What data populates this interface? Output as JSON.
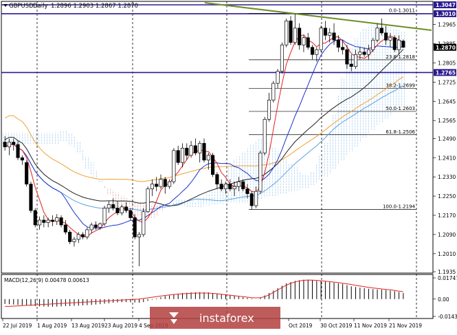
{
  "chart_data": {
    "type": "candlestick",
    "header": {
      "symbol": "GBPUSD",
      "timeframe": "Daily",
      "ohlc_text": "1.2896 1.2903 1.2867 1.2870"
    },
    "price_axis": {
      "ylim": [
        1.1935,
        1.3047
      ],
      "ticks": [
        "1.2965",
        "1.2885",
        "1.2805",
        "1.2725",
        "1.2645",
        "1.2565",
        "1.2490",
        "1.2410",
        "1.2330",
        "1.2250",
        "1.2170",
        "1.2090",
        "1.2010",
        "1.1935"
      ],
      "tick_values": [
        1.2965,
        1.2885,
        1.2805,
        1.2725,
        1.2645,
        1.2565,
        1.249,
        1.241,
        1.233,
        1.225,
        1.217,
        1.209,
        1.201,
        1.1935
      ],
      "highlight_labels": [
        {
          "text": "1.3047",
          "value": 1.3047,
          "color": "#2b1a8f"
        },
        {
          "text": "1.3010",
          "value": 1.301,
          "color": "#2b1a8f"
        },
        {
          "text": "1.2870",
          "value": 1.287,
          "color": "#000000"
        },
        {
          "text": "1.2765",
          "value": 1.2765,
          "color": "#2b1a8f"
        }
      ]
    },
    "horizontal_levels": [
      {
        "value": 1.3047,
        "color": "#2b1a8f"
      },
      {
        "value": 1.301,
        "color": "#2b1a8f"
      },
      {
        "value": 1.2765,
        "color": "#2b1a8f"
      }
    ],
    "fibonacci": [
      {
        "label": "0.0-1.3011",
        "value": 1.3011
      },
      {
        "label": "23.6-1.2818",
        "value": 1.2818
      },
      {
        "label": "38.2-1.2699",
        "value": 1.2699
      },
      {
        "label": "50.0-1.2603",
        "value": 1.2603
      },
      {
        "label": "61.8-1.2506",
        "value": 1.2506
      },
      {
        "label": "100.0-1.2194",
        "value": 1.2194
      }
    ],
    "x_labels": [
      "22 Jul 2019",
      "1 Aug 2019",
      "13 Aug 2019",
      "23 Aug 2019",
      "4 Sep 2019",
      "",
      "",
      "Oct 2019",
      "30 Oct 2019",
      "11 Nov 2019",
      "21 Nov 2019"
    ],
    "candles": [
      {
        "o": 1.2475,
        "h": 1.25,
        "l": 1.244,
        "c": 1.2455
      },
      {
        "o": 1.2455,
        "h": 1.249,
        "l": 1.242,
        "c": 1.2475
      },
      {
        "o": 1.2475,
        "h": 1.249,
        "l": 1.244,
        "c": 1.2465
      },
      {
        "o": 1.2465,
        "h": 1.248,
        "l": 1.24,
        "c": 1.241
      },
      {
        "o": 1.241,
        "h": 1.242,
        "l": 1.238,
        "c": 1.24
      },
      {
        "o": 1.239,
        "h": 1.24,
        "l": 1.229,
        "c": 1.23
      },
      {
        "o": 1.23,
        "h": 1.231,
        "l": 1.218,
        "c": 1.219
      },
      {
        "o": 1.219,
        "h": 1.22,
        "l": 1.212,
        "c": 1.213
      },
      {
        "o": 1.213,
        "h": 1.2165,
        "l": 1.211,
        "c": 1.215
      },
      {
        "o": 1.215,
        "h": 1.217,
        "l": 1.212,
        "c": 1.214
      },
      {
        "o": 1.214,
        "h": 1.216,
        "l": 1.212,
        "c": 1.215
      },
      {
        "o": 1.215,
        "h": 1.217,
        "l": 1.2125,
        "c": 1.2145
      },
      {
        "o": 1.2145,
        "h": 1.2175,
        "l": 1.213,
        "c": 1.216
      },
      {
        "o": 1.216,
        "h": 1.217,
        "l": 1.212,
        "c": 1.213
      },
      {
        "o": 1.213,
        "h": 1.215,
        "l": 1.209,
        "c": 1.21
      },
      {
        "o": 1.21,
        "h": 1.211,
        "l": 1.205,
        "c": 1.206
      },
      {
        "o": 1.206,
        "h": 1.208,
        "l": 1.204,
        "c": 1.207
      },
      {
        "o": 1.207,
        "h": 1.21,
        "l": 1.2055,
        "c": 1.209
      },
      {
        "o": 1.209,
        "h": 1.21,
        "l": 1.207,
        "c": 1.208
      },
      {
        "o": 1.208,
        "h": 1.212,
        "l": 1.207,
        "c": 1.211
      },
      {
        "o": 1.211,
        "h": 1.214,
        "l": 1.2095,
        "c": 1.213
      },
      {
        "o": 1.213,
        "h": 1.2145,
        "l": 1.211,
        "c": 1.212
      },
      {
        "o": 1.212,
        "h": 1.214,
        "l": 1.211,
        "c": 1.2135
      },
      {
        "o": 1.2135,
        "h": 1.221,
        "l": 1.2125,
        "c": 1.22
      },
      {
        "o": 1.22,
        "h": 1.223,
        "l": 1.218,
        "c": 1.2215
      },
      {
        "o": 1.2215,
        "h": 1.224,
        "l": 1.219,
        "c": 1.22
      },
      {
        "o": 1.22,
        "h": 1.223,
        "l": 1.217,
        "c": 1.218
      },
      {
        "o": 1.218,
        "h": 1.2215,
        "l": 1.217,
        "c": 1.2205
      },
      {
        "o": 1.2205,
        "h": 1.2225,
        "l": 1.218,
        "c": 1.219
      },
      {
        "o": 1.219,
        "h": 1.22,
        "l": 1.215,
        "c": 1.216
      },
      {
        "o": 1.216,
        "h": 1.2175,
        "l": 1.207,
        "c": 1.208
      },
      {
        "o": 1.208,
        "h": 1.21,
        "l": 1.1958,
        "c": 1.209
      },
      {
        "o": 1.209,
        "h": 1.22,
        "l": 1.208,
        "c": 1.2185
      },
      {
        "o": 1.2185,
        "h": 1.229,
        "l": 1.218,
        "c": 1.228
      },
      {
        "o": 1.228,
        "h": 1.232,
        "l": 1.225,
        "c": 1.23
      },
      {
        "o": 1.23,
        "h": 1.233,
        "l": 1.227,
        "c": 1.229
      },
      {
        "o": 1.229,
        "h": 1.234,
        "l": 1.228,
        "c": 1.232
      },
      {
        "o": 1.232,
        "h": 1.233,
        "l": 1.226,
        "c": 1.229
      },
      {
        "o": 1.229,
        "h": 1.232,
        "l": 1.228,
        "c": 1.231
      },
      {
        "o": 1.231,
        "h": 1.245,
        "l": 1.23,
        "c": 1.244
      },
      {
        "o": 1.244,
        "h": 1.246,
        "l": 1.238,
        "c": 1.239
      },
      {
        "o": 1.239,
        "h": 1.247,
        "l": 1.237,
        "c": 1.245
      },
      {
        "o": 1.245,
        "h": 1.247,
        "l": 1.24,
        "c": 1.242
      },
      {
        "o": 1.242,
        "h": 1.248,
        "l": 1.241,
        "c": 1.246
      },
      {
        "o": 1.246,
        "h": 1.249,
        "l": 1.242,
        "c": 1.243
      },
      {
        "o": 1.243,
        "h": 1.248,
        "l": 1.239,
        "c": 1.247
      },
      {
        "o": 1.247,
        "h": 1.249,
        "l": 1.239,
        "c": 1.24
      },
      {
        "o": 1.24,
        "h": 1.243,
        "l": 1.236,
        "c": 1.242
      },
      {
        "o": 1.242,
        "h": 1.243,
        "l": 1.233,
        "c": 1.234
      },
      {
        "o": 1.234,
        "h": 1.235,
        "l": 1.228,
        "c": 1.23
      },
      {
        "o": 1.23,
        "h": 1.232,
        "l": 1.227,
        "c": 1.228
      },
      {
        "o": 1.228,
        "h": 1.231,
        "l": 1.226,
        "c": 1.23
      },
      {
        "o": 1.23,
        "h": 1.232,
        "l": 1.227,
        "c": 1.228
      },
      {
        "o": 1.228,
        "h": 1.231,
        "l": 1.225,
        "c": 1.229
      },
      {
        "o": 1.229,
        "h": 1.233,
        "l": 1.227,
        "c": 1.231
      },
      {
        "o": 1.231,
        "h": 1.232,
        "l": 1.227,
        "c": 1.228
      },
      {
        "o": 1.228,
        "h": 1.23,
        "l": 1.224,
        "c": 1.226
      },
      {
        "o": 1.226,
        "h": 1.227,
        "l": 1.2195,
        "c": 1.221
      },
      {
        "o": 1.221,
        "h": 1.229,
        "l": 1.22,
        "c": 1.227
      },
      {
        "o": 1.227,
        "h": 1.244,
        "l": 1.226,
        "c": 1.243
      },
      {
        "o": 1.243,
        "h": 1.258,
        "l": 1.242,
        "c": 1.257
      },
      {
        "o": 1.257,
        "h": 1.268,
        "l": 1.256,
        "c": 1.265
      },
      {
        "o": 1.265,
        "h": 1.273,
        "l": 1.264,
        "c": 1.272
      },
      {
        "o": 1.272,
        "h": 1.278,
        "l": 1.27,
        "c": 1.277
      },
      {
        "o": 1.277,
        "h": 1.289,
        "l": 1.276,
        "c": 1.288
      },
      {
        "o": 1.288,
        "h": 1.299,
        "l": 1.287,
        "c": 1.298
      },
      {
        "o": 1.298,
        "h": 1.3,
        "l": 1.288,
        "c": 1.289
      },
      {
        "o": 1.289,
        "h": 1.301,
        "l": 1.288,
        "c": 1.295
      },
      {
        "o": 1.295,
        "h": 1.297,
        "l": 1.286,
        "c": 1.288
      },
      {
        "o": 1.288,
        "h": 1.292,
        "l": 1.285,
        "c": 1.291
      },
      {
        "o": 1.291,
        "h": 1.293,
        "l": 1.286,
        "c": 1.287
      },
      {
        "o": 1.287,
        "h": 1.288,
        "l": 1.282,
        "c": 1.284
      },
      {
        "o": 1.284,
        "h": 1.287,
        "l": 1.281,
        "c": 1.286
      },
      {
        "o": 1.286,
        "h": 1.296,
        "l": 1.285,
        "c": 1.295
      },
      {
        "o": 1.295,
        "h": 1.298,
        "l": 1.29,
        "c": 1.292
      },
      {
        "o": 1.292,
        "h": 1.295,
        "l": 1.289,
        "c": 1.293
      },
      {
        "o": 1.293,
        "h": 1.297,
        "l": 1.288,
        "c": 1.29
      },
      {
        "o": 1.29,
        "h": 1.292,
        "l": 1.285,
        "c": 1.287
      },
      {
        "o": 1.287,
        "h": 1.29,
        "l": 1.284,
        "c": 1.286
      },
      {
        "o": 1.286,
        "h": 1.288,
        "l": 1.278,
        "c": 1.28
      },
      {
        "o": 1.28,
        "h": 1.284,
        "l": 1.277,
        "c": 1.279
      },
      {
        "o": 1.279,
        "h": 1.286,
        "l": 1.278,
        "c": 1.284
      },
      {
        "o": 1.284,
        "h": 1.287,
        "l": 1.282,
        "c": 1.285
      },
      {
        "o": 1.285,
        "h": 1.287,
        "l": 1.283,
        "c": 1.284
      },
      {
        "o": 1.284,
        "h": 1.288,
        "l": 1.282,
        "c": 1.286
      },
      {
        "o": 1.286,
        "h": 1.291,
        "l": 1.285,
        "c": 1.29
      },
      {
        "o": 1.29,
        "h": 1.297,
        "l": 1.289,
        "c": 1.295
      },
      {
        "o": 1.295,
        "h": 1.299,
        "l": 1.292,
        "c": 1.293
      },
      {
        "o": 1.293,
        "h": 1.296,
        "l": 1.288,
        "c": 1.29
      },
      {
        "o": 1.29,
        "h": 1.293,
        "l": 1.287,
        "c": 1.291
      },
      {
        "o": 1.291,
        "h": 1.292,
        "l": 1.285,
        "c": 1.286
      },
      {
        "o": 1.286,
        "h": 1.292,
        "l": 1.284,
        "c": 1.29
      },
      {
        "o": 1.2896,
        "h": 1.2903,
        "l": 1.2867,
        "c": 1.287
      }
    ],
    "macd": {
      "label": "MACD(12,26,9) 0.00478 0.00613",
      "ylim": [
        -0.01431,
        0.01747
      ],
      "ticks": [
        "0.01747",
        "0.00",
        "-0.01431"
      ],
      "tick_values": [
        0.01747,
        0.0,
        -0.01431
      ],
      "histogram": [
        -0.004,
        -0.0042,
        -0.0045,
        -0.0048,
        -0.005,
        -0.0052,
        -0.0055,
        -0.0058,
        -0.006,
        -0.0062,
        -0.0063,
        -0.0063,
        -0.0062,
        -0.006,
        -0.0058,
        -0.0058,
        -0.0056,
        -0.0054,
        -0.0052,
        -0.005,
        -0.0048,
        -0.0045,
        -0.0042,
        -0.0038,
        -0.0034,
        -0.003,
        -0.0028,
        -0.0026,
        -0.0025,
        -0.0026,
        -0.0028,
        -0.003,
        -0.0025,
        -0.0015,
        -0.0005,
        0.0005,
        0.0015,
        0.0025,
        0.003,
        0.004,
        0.0045,
        0.005,
        0.0052,
        0.0055,
        0.0056,
        0.0057,
        0.0056,
        0.0055,
        0.005,
        0.0045,
        0.004,
        0.0035,
        0.003,
        0.0025,
        0.002,
        0.0015,
        0.001,
        0.0005,
        0.0,
        0.001,
        0.003,
        0.005,
        0.007,
        0.009,
        0.011,
        0.013,
        0.014,
        0.015,
        0.0155,
        0.016,
        0.016,
        0.0155,
        0.015,
        0.015,
        0.0145,
        0.014,
        0.0135,
        0.013,
        0.0125,
        0.0115,
        0.0105,
        0.01,
        0.0095,
        0.009,
        0.0085,
        0.0082,
        0.008,
        0.0078,
        0.0075,
        0.007,
        0.0065,
        0.0058,
        0.005
      ],
      "signal": [
        -0.006,
        -0.006,
        -0.0058,
        -0.0056,
        -0.0054,
        -0.0052,
        -0.005,
        -0.0048,
        -0.0046,
        -0.0044,
        -0.0042,
        -0.004,
        -0.0038,
        -0.0036,
        -0.0034,
        -0.0032,
        -0.003,
        -0.0028,
        -0.0026,
        -0.0024,
        -0.0022,
        -0.002,
        -0.0018,
        -0.0016,
        -0.0014,
        -0.0012,
        -0.001,
        -0.0008,
        -0.0006,
        -0.0004,
        -0.0002,
        0.0,
        0.0005,
        0.001,
        0.0015,
        0.002,
        0.0025,
        0.003,
        0.0034,
        0.0038,
        0.0041,
        0.0044,
        0.0046,
        0.0048,
        0.0049,
        0.005,
        0.005,
        0.0049,
        0.0047,
        0.0044,
        0.004,
        0.0036,
        0.0032,
        0.0028,
        0.0024,
        0.002,
        0.0016,
        0.0012,
        0.001,
        0.0012,
        0.002,
        0.0035,
        0.0055,
        0.0075,
        0.0095,
        0.0115,
        0.013,
        0.0142,
        0.015,
        0.0155,
        0.0157,
        0.0156,
        0.0154,
        0.0151,
        0.0148,
        0.0144,
        0.014,
        0.0136,
        0.0131,
        0.0126,
        0.012,
        0.0114,
        0.0108,
        0.0102,
        0.0097,
        0.0092,
        0.0088,
        0.0084,
        0.008,
        0.0076,
        0.0071,
        0.0066,
        0.0061
      ]
    },
    "watermark": "instaforex"
  }
}
